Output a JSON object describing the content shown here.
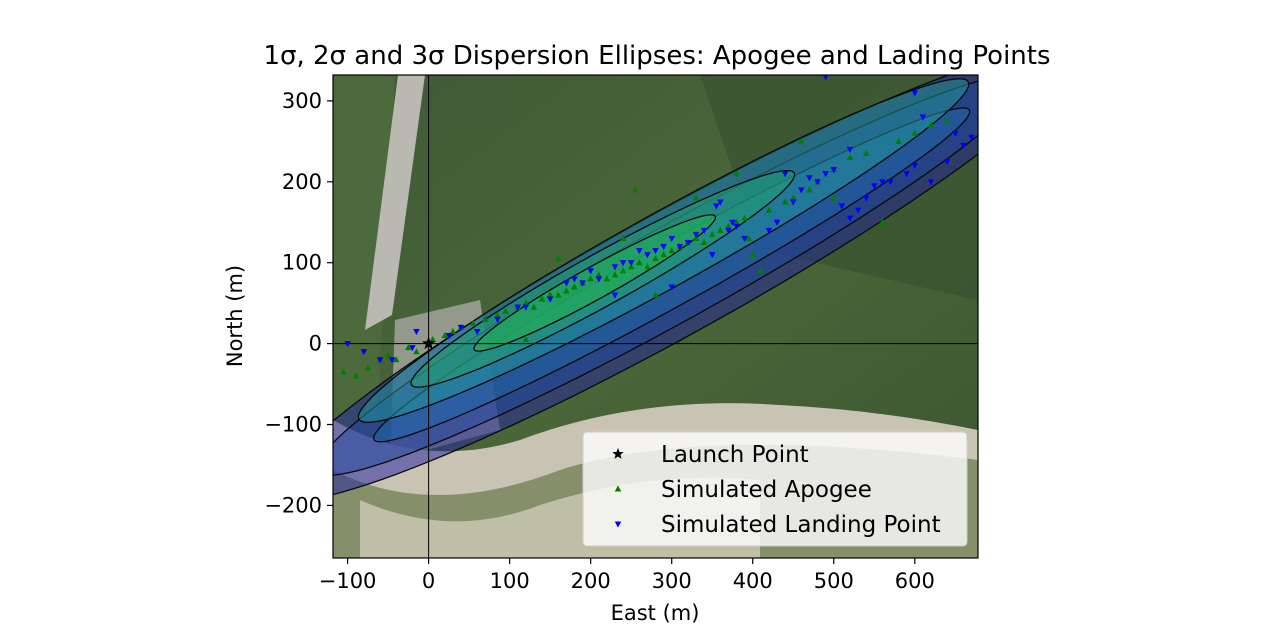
{
  "chart_data": {
    "type": "scatter",
    "title": "1σ, 2σ and 3σ Dispersion Ellipses: Apogee and Lading Points",
    "xlabel": "East (m)",
    "ylabel": "North (m)",
    "xlim": [
      -118,
      678
    ],
    "ylim": [
      -265,
      332
    ],
    "xticks": [
      -100,
      0,
      100,
      200,
      300,
      400,
      500,
      600
    ],
    "yticks": [
      -200,
      -100,
      0,
      100,
      200,
      300
    ],
    "xtick_labels": [
      "−100",
      "0",
      "100",
      "200",
      "300",
      "400",
      "500",
      "600"
    ],
    "ytick_labels": [
      "−200",
      "−100",
      "0",
      "100",
      "200",
      "300"
    ],
    "reference_lines": {
      "x": 0,
      "y": 0
    },
    "background": "satellite image",
    "legend_position": "lower right",
    "ellipses": [
      {
        "set": "landing",
        "sigma": 3,
        "cx": 300,
        "cy": 85,
        "semi_major": 560,
        "semi_minor": 76,
        "angle_deg": 29,
        "color": "#1f1f9e"
      },
      {
        "set": "landing",
        "sigma": 2,
        "cx": 300,
        "cy": 85,
        "semi_major": 500,
        "semi_minor": 58,
        "angle_deg": 29,
        "color": "#2048a0"
      },
      {
        "set": "landing",
        "sigma": 1,
        "cx": 300,
        "cy": 85,
        "semi_major": 420,
        "semi_minor": 38,
        "angle_deg": 29,
        "color": "#1d6aa8"
      },
      {
        "set": "apogee",
        "sigma": 3,
        "cx": 290,
        "cy": 115,
        "semi_major": 430,
        "semi_minor": 46,
        "angle_deg": 29,
        "color": "#1f9a9a"
      },
      {
        "set": "apogee",
        "sigma": 2,
        "cx": 215,
        "cy": 80,
        "semi_major": 270,
        "semi_minor": 32,
        "angle_deg": 29,
        "color": "#1fa36a"
      },
      {
        "set": "apogee",
        "sigma": 1,
        "cx": 205,
        "cy": 75,
        "semi_major": 170,
        "semi_minor": 20,
        "angle_deg": 29,
        "color": "#22b84c"
      }
    ],
    "series": [
      {
        "name": "Launch Point",
        "marker": "star",
        "color": "#000000",
        "points": [
          [
            0,
            0
          ]
        ]
      },
      {
        "name": "Simulated Apogee",
        "marker": "triangle-up",
        "color": "#008000",
        "points": [
          [
            -105,
            -35
          ],
          [
            -90,
            -40
          ],
          [
            -75,
            -30
          ],
          [
            -60,
            -20
          ],
          [
            -50,
            -15
          ],
          [
            -40,
            -20
          ],
          [
            -25,
            -5
          ],
          [
            -15,
            -10
          ],
          [
            5,
            5
          ],
          [
            20,
            10
          ],
          [
            30,
            15
          ],
          [
            40,
            20
          ],
          [
            55,
            25
          ],
          [
            70,
            30
          ],
          [
            85,
            35
          ],
          [
            95,
            40
          ],
          [
            110,
            45
          ],
          [
            120,
            50
          ],
          [
            130,
            45
          ],
          [
            140,
            55
          ],
          [
            150,
            60
          ],
          [
            160,
            60
          ],
          [
            170,
            65
          ],
          [
            180,
            70
          ],
          [
            190,
            75
          ],
          [
            200,
            80
          ],
          [
            210,
            85
          ],
          [
            220,
            80
          ],
          [
            230,
            85
          ],
          [
            240,
            90
          ],
          [
            250,
            95
          ],
          [
            255,
            190
          ],
          [
            260,
            100
          ],
          [
            270,
            95
          ],
          [
            280,
            105
          ],
          [
            290,
            110
          ],
          [
            300,
            115
          ],
          [
            310,
            120
          ],
          [
            320,
            125
          ],
          [
            330,
            130
          ],
          [
            340,
            125
          ],
          [
            350,
            135
          ],
          [
            360,
            140
          ],
          [
            370,
            145
          ],
          [
            380,
            150
          ],
          [
            390,
            155
          ],
          [
            395,
            130
          ],
          [
            400,
            110
          ],
          [
            410,
            90
          ],
          [
            420,
            165
          ],
          [
            440,
            175
          ],
          [
            450,
            180
          ],
          [
            470,
            190
          ],
          [
            480,
            200
          ],
          [
            500,
            215
          ],
          [
            520,
            230
          ],
          [
            540,
            235
          ],
          [
            560,
            150
          ],
          [
            580,
            250
          ],
          [
            600,
            260
          ],
          [
            620,
            270
          ],
          [
            640,
            275
          ],
          [
            120,
            5
          ],
          [
            160,
            105
          ],
          [
            240,
            130
          ],
          [
            280,
            60
          ],
          [
            330,
            180
          ],
          [
            380,
            210
          ],
          [
            460,
            250
          ],
          [
            500,
            180
          ]
        ]
      },
      {
        "name": "Simulated Landing Point",
        "marker": "triangle-down",
        "color": "#0000ff",
        "points": [
          [
            -100,
            0
          ],
          [
            -80,
            -10
          ],
          [
            -60,
            -20
          ],
          [
            -45,
            -20
          ],
          [
            -20,
            -5
          ],
          [
            -15,
            15
          ],
          [
            25,
            10
          ],
          [
            40,
            20
          ],
          [
            60,
            15
          ],
          [
            85,
            30
          ],
          [
            110,
            45
          ],
          [
            120,
            45
          ],
          [
            150,
            55
          ],
          [
            170,
            75
          ],
          [
            180,
            80
          ],
          [
            190,
            75
          ],
          [
            210,
            80
          ],
          [
            230,
            95
          ],
          [
            240,
            100
          ],
          [
            250,
            100
          ],
          [
            260,
            115
          ],
          [
            270,
            110
          ],
          [
            280,
            115
          ],
          [
            290,
            120
          ],
          [
            300,
            130
          ],
          [
            310,
            120
          ],
          [
            320,
            125
          ],
          [
            330,
            135
          ],
          [
            340,
            140
          ],
          [
            355,
            170
          ],
          [
            360,
            175
          ],
          [
            370,
            140
          ],
          [
            375,
            150
          ],
          [
            380,
            145
          ],
          [
            390,
            130
          ],
          [
            420,
            140
          ],
          [
            430,
            150
          ],
          [
            450,
            175
          ],
          [
            460,
            190
          ],
          [
            470,
            205
          ],
          [
            480,
            200
          ],
          [
            490,
            210
          ],
          [
            500,
            215
          ],
          [
            510,
            170
          ],
          [
            520,
            155
          ],
          [
            530,
            165
          ],
          [
            540,
            180
          ],
          [
            550,
            195
          ],
          [
            560,
            200
          ],
          [
            570,
            200
          ],
          [
            590,
            210
          ],
          [
            600,
            220
          ],
          [
            620,
            200
          ],
          [
            640,
            225
          ],
          [
            660,
            245
          ],
          [
            670,
            255
          ],
          [
            680,
            275
          ],
          [
            490,
            330
          ],
          [
            600,
            310
          ],
          [
            300,
            70
          ],
          [
            230,
            60
          ],
          [
            200,
            90
          ],
          [
            350,
            110
          ],
          [
            440,
            210
          ],
          [
            520,
            240
          ],
          [
            610,
            280
          ],
          [
            650,
            260
          ]
        ]
      }
    ]
  }
}
